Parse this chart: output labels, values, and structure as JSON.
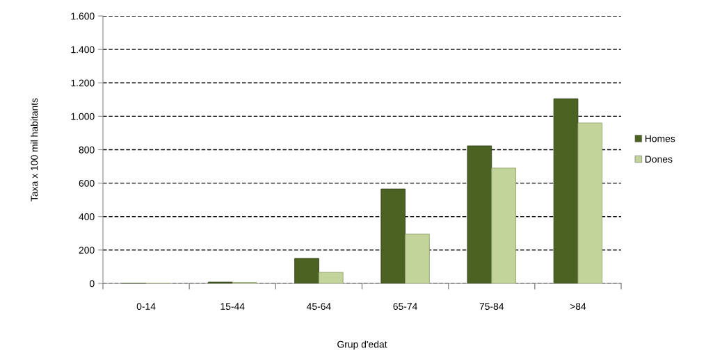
{
  "chart_data": {
    "type": "bar",
    "xlabel": "Grup d'edat",
    "ylabel": "Taxa x 100 mil habitants",
    "categories": [
      "0-14",
      "15-44",
      "45-64",
      "65-74",
      "75-84",
      ">84"
    ],
    "series": [
      {
        "name": "Homes",
        "color": "#4b6222",
        "values": [
          2,
          8,
          150,
          565,
          823,
          1105
        ]
      },
      {
        "name": "Dones",
        "color": "#c3d49a",
        "values": [
          2,
          6,
          66,
          295,
          690,
          960
        ]
      }
    ],
    "ylim": [
      0,
      1600
    ],
    "yticks": [
      {
        "value": 0,
        "label": "0"
      },
      {
        "value": 200,
        "label": "200"
      },
      {
        "value": 400,
        "label": "400"
      },
      {
        "value": 600,
        "label": "600"
      },
      {
        "value": 800,
        "label": "800"
      },
      {
        "value": 1000,
        "label": "1.000"
      },
      {
        "value": 1200,
        "label": "1.200"
      },
      {
        "value": 1400,
        "label": "1.400"
      },
      {
        "value": 1600,
        "label": "1.600"
      }
    ],
    "grid": "y",
    "legend": "right"
  }
}
